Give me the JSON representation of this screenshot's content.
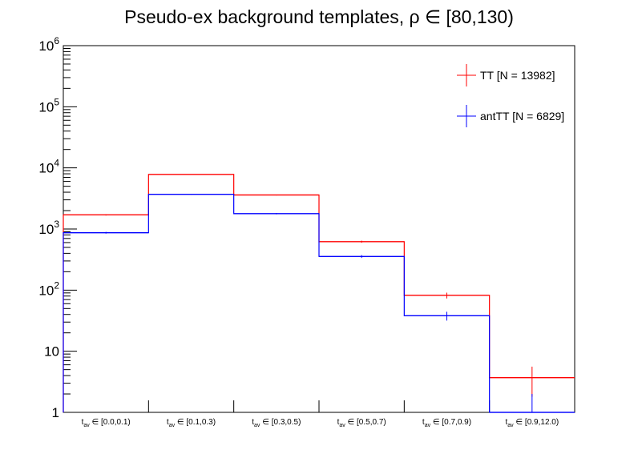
{
  "chart_data": {
    "type": "step-histogram",
    "title": "Pseudo-ex background templates, ρ ∈ [80,130)",
    "xlabel": "",
    "ylabel": "",
    "yscale": "log",
    "ylim": [
      1,
      1000000
    ],
    "ytick_values": [
      1,
      10,
      100,
      1000,
      10000,
      100000,
      1000000
    ],
    "ytick_labels": [
      {
        "base": "1",
        "exp": ""
      },
      {
        "base": "10",
        "exp": ""
      },
      {
        "base": "10",
        "exp": "2"
      },
      {
        "base": "10",
        "exp": "3"
      },
      {
        "base": "10",
        "exp": "4"
      },
      {
        "base": "10",
        "exp": "5"
      },
      {
        "base": "10",
        "exp": "6"
      }
    ],
    "categories": [
      {
        "pre": "t",
        "sub": "av",
        "post": " ∈ [0.0,0.1)"
      },
      {
        "pre": "t",
        "sub": "av",
        "post": " ∈ [0.1,0.3)"
      },
      {
        "pre": "t",
        "sub": "av",
        "post": " ∈ [0.3,0.5)"
      },
      {
        "pre": "t",
        "sub": "av",
        "post": " ∈ [0.5,0.7)"
      },
      {
        "pre": "t",
        "sub": "av",
        "post": " ∈ [0.7,0.9)"
      },
      {
        "pre": "t",
        "sub": "av",
        "post": " ∈ [0.9,12.0)"
      }
    ],
    "series": [
      {
        "name": "TT [N = 13982]",
        "color": "#ff0000",
        "values": [
          1700,
          7800,
          3600,
          620,
          82,
          3.7
        ],
        "errors": [
          41,
          88,
          60,
          25,
          9,
          1.9
        ]
      },
      {
        "name": "antTT [N = 6829]",
        "color": "#0000ff",
        "values": [
          870,
          3700,
          1780,
          355,
          38,
          1.0
        ],
        "errors": [
          29,
          61,
          42,
          19,
          6.2,
          1.0
        ]
      }
    ],
    "legend_position": "top-right",
    "grid": false
  }
}
